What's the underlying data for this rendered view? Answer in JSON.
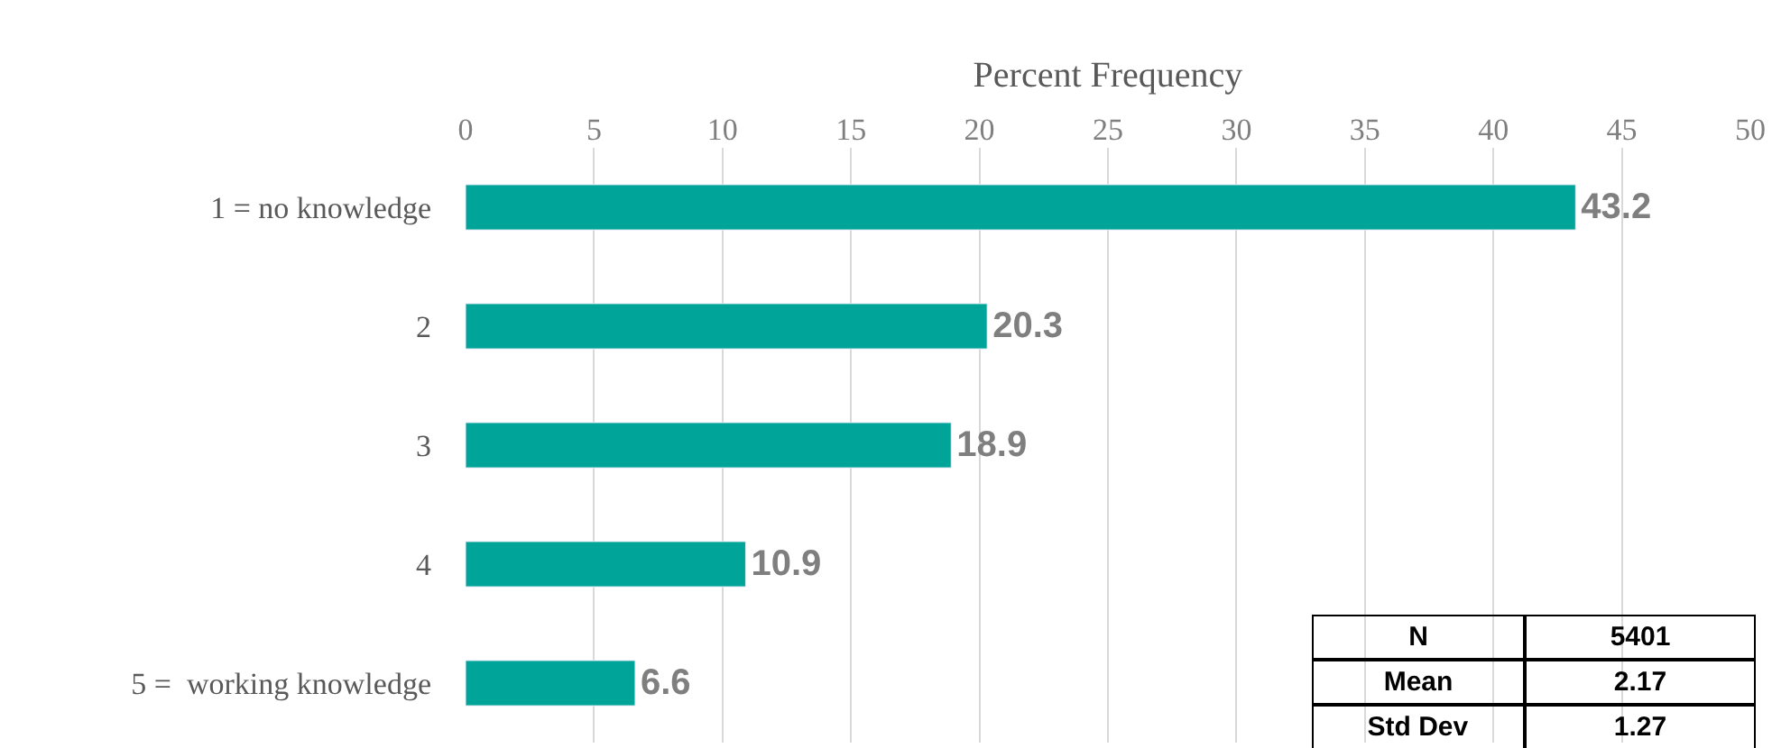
{
  "chart_data": {
    "type": "bar",
    "orientation": "horizontal",
    "xlabel": "Percent Frequency",
    "categories": [
      "1 = no knowledge",
      "2",
      "3",
      "4",
      "5 =  working knowledge"
    ],
    "values": [
      43.2,
      20.3,
      18.9,
      10.9,
      6.6
    ],
    "color": "#00a499",
    "xlim": [
      0,
      50
    ],
    "xticks": [
      0,
      5,
      10,
      15,
      20,
      25,
      30,
      35,
      40,
      45,
      50
    ],
    "grid": "x",
    "data_labels": true,
    "annotations": [
      "N",
      "5401",
      "Mean",
      "2.17",
      "Std Dev",
      "1.27"
    ]
  }
}
